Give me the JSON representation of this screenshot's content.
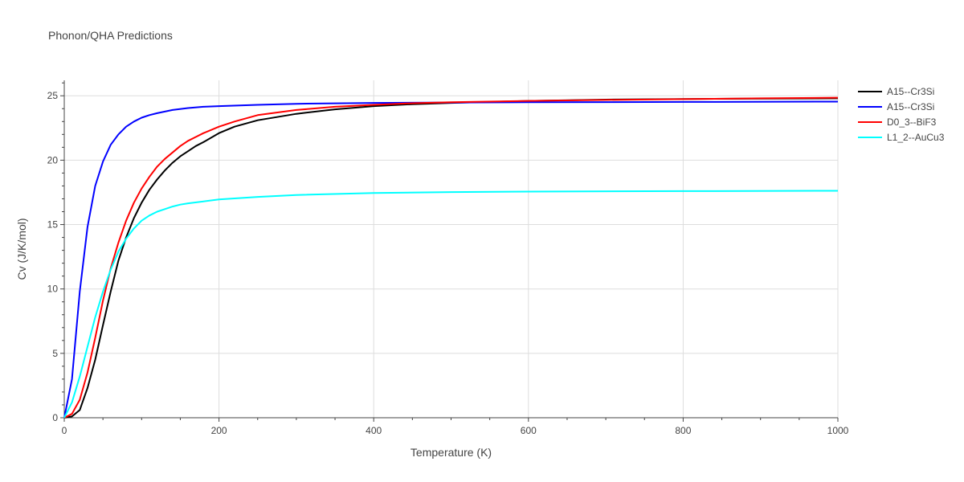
{
  "chart_data": {
    "type": "line",
    "title": "Phonon/QHA Predictions",
    "xlabel": "Temperature (K)",
    "ylabel": "Cv (J/K/mol)",
    "xlim": [
      0,
      1000
    ],
    "ylim": [
      0,
      26.2
    ],
    "x_ticks": [
      0,
      200,
      400,
      600,
      800,
      1000
    ],
    "y_ticks": [
      0,
      5,
      10,
      15,
      20,
      25
    ],
    "grid": true,
    "legend_position": "right",
    "series": [
      {
        "name": "A15--Cr3Si",
        "color": "#000000",
        "x": [
          0,
          10,
          20,
          30,
          40,
          50,
          60,
          70,
          80,
          90,
          100,
          110,
          120,
          130,
          140,
          150,
          160,
          170,
          180,
          200,
          220,
          250,
          300,
          350,
          400,
          450,
          500,
          600,
          700,
          800,
          900,
          1000
        ],
        "y": [
          0,
          0.1,
          0.6,
          2.3,
          4.5,
          7.2,
          9.8,
          12.2,
          14.0,
          15.5,
          16.7,
          17.7,
          18.5,
          19.2,
          19.8,
          20.3,
          20.7,
          21.1,
          21.4,
          22.1,
          22.6,
          23.1,
          23.6,
          23.95,
          24.2,
          24.35,
          24.45,
          24.6,
          24.7,
          24.75,
          24.78,
          24.8
        ]
      },
      {
        "name": "A15--Cr3Si",
        "color": "#0000ff",
        "x": [
          0,
          10,
          20,
          30,
          40,
          50,
          60,
          70,
          80,
          90,
          100,
          110,
          120,
          140,
          160,
          180,
          200,
          250,
          300,
          400,
          500,
          600,
          800,
          1000
        ],
        "y": [
          0,
          3.0,
          9.8,
          14.8,
          18.0,
          19.9,
          21.2,
          22.0,
          22.6,
          23.0,
          23.3,
          23.5,
          23.65,
          23.9,
          24.05,
          24.15,
          24.2,
          24.3,
          24.38,
          24.45,
          24.48,
          24.5,
          24.52,
          24.55
        ]
      },
      {
        "name": "D0_3--BiF3",
        "color": "#ff0000",
        "x": [
          0,
          10,
          20,
          30,
          40,
          50,
          60,
          70,
          80,
          90,
          100,
          110,
          120,
          130,
          140,
          150,
          160,
          170,
          180,
          200,
          220,
          250,
          300,
          350,
          400,
          450,
          500,
          600,
          700,
          800,
          900,
          1000
        ],
        "y": [
          0,
          0.3,
          1.4,
          3.5,
          6.2,
          9.1,
          11.6,
          13.6,
          15.3,
          16.7,
          17.8,
          18.7,
          19.5,
          20.1,
          20.6,
          21.1,
          21.5,
          21.8,
          22.1,
          22.6,
          23.0,
          23.5,
          23.9,
          24.15,
          24.3,
          24.42,
          24.5,
          24.6,
          24.68,
          24.74,
          24.8,
          24.85
        ]
      },
      {
        "name": "L1_2--AuCu3",
        "color": "#00ffff",
        "x": [
          0,
          10,
          20,
          30,
          40,
          50,
          60,
          70,
          80,
          90,
          100,
          110,
          120,
          130,
          140,
          150,
          160,
          180,
          200,
          250,
          300,
          400,
          500,
          600,
          800,
          1000
        ],
        "y": [
          0,
          1.2,
          3.2,
          5.5,
          7.8,
          9.8,
          11.5,
          12.9,
          13.9,
          14.7,
          15.3,
          15.7,
          16.0,
          16.2,
          16.4,
          16.55,
          16.65,
          16.8,
          16.95,
          17.15,
          17.3,
          17.45,
          17.52,
          17.56,
          17.6,
          17.62
        ]
      }
    ]
  }
}
